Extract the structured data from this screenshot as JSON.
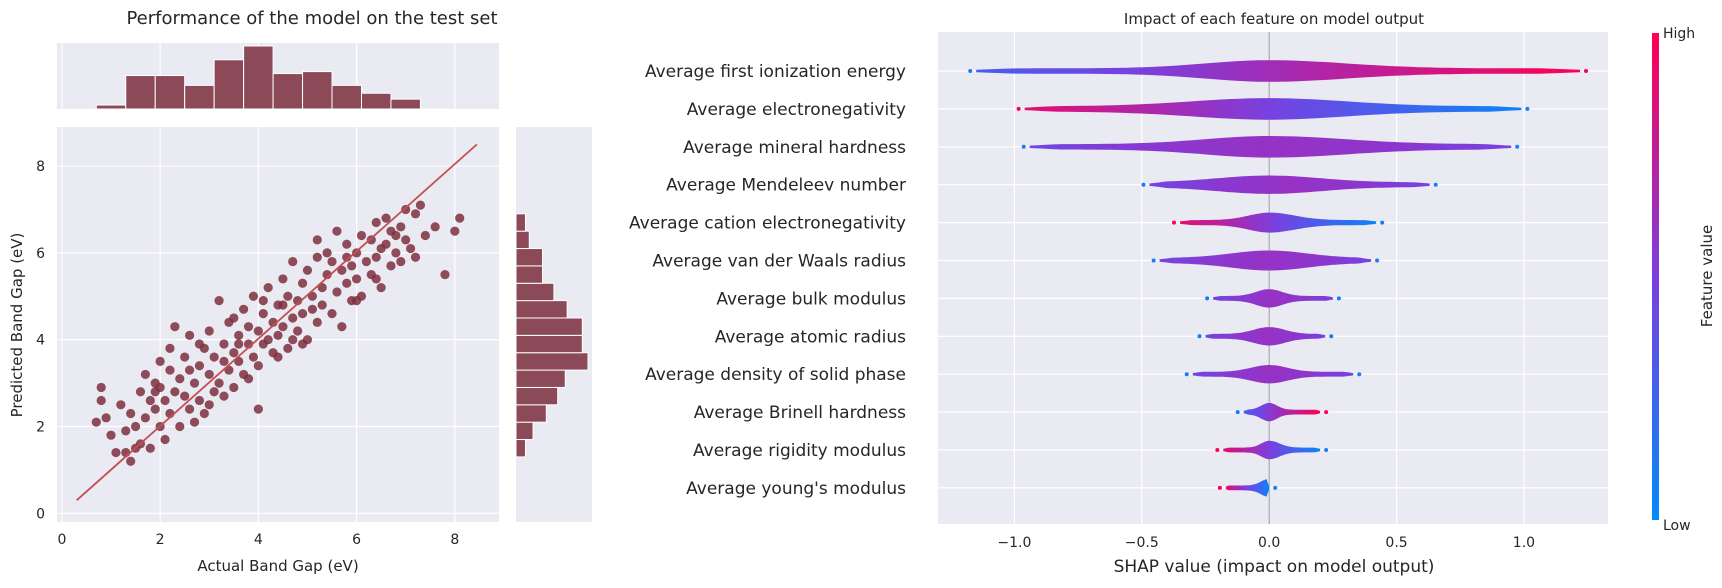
{
  "chart_data": [
    {
      "type": "scatter",
      "title": "Performance of the model on the test set",
      "xlabel": "Actual Band Gap (eV)",
      "ylabel": "Predicted Band Gap (eV)",
      "xlim": [
        -0.1,
        8.9
      ],
      "ylim": [
        -0.2,
        8.9
      ],
      "xticks": [
        0,
        2,
        4,
        6,
        8
      ],
      "yticks": [
        0,
        2,
        4,
        6,
        8
      ],
      "grid": true,
      "colors": {
        "points": "#7e2f3f",
        "line": "#c44e52",
        "hist": "#8c4a58",
        "background": "#eaeaf2"
      },
      "fit_line": {
        "x": [
          0.3,
          8.45
        ],
        "y": [
          0.3,
          8.5
        ]
      },
      "top_histogram": {
        "bin_edges": [
          0.7,
          1.3,
          1.9,
          2.5,
          3.1,
          3.7,
          4.3,
          4.9,
          5.5,
          6.1,
          6.7,
          7.3,
          7.9
        ],
        "counts": [
          2,
          17,
          17,
          12,
          25,
          32,
          18,
          19,
          12,
          8,
          5,
          0
        ]
      },
      "right_histogram": {
        "bin_edges": [
          1.3,
          1.7,
          2.1,
          2.5,
          2.9,
          3.3,
          3.7,
          4.1,
          4.5,
          4.9,
          5.3,
          5.7,
          6.1,
          6.5,
          6.9
        ],
        "counts": [
          5,
          9,
          16,
          22,
          26,
          38,
          35,
          35,
          27,
          20,
          14,
          14,
          7,
          5
        ]
      },
      "points": [
        [
          0.7,
          2.1
        ],
        [
          0.8,
          2.6
        ],
        [
          0.8,
          2.9
        ],
        [
          0.9,
          2.2
        ],
        [
          1.0,
          1.8
        ],
        [
          1.1,
          1.4
        ],
        [
          1.2,
          2.5
        ],
        [
          1.3,
          1.4
        ],
        [
          1.3,
          1.9
        ],
        [
          1.4,
          2.3
        ],
        [
          1.4,
          1.2
        ],
        [
          1.5,
          1.5
        ],
        [
          1.5,
          2.0
        ],
        [
          1.6,
          2.8
        ],
        [
          1.6,
          1.6
        ],
        [
          1.7,
          2.2
        ],
        [
          1.7,
          3.2
        ],
        [
          1.8,
          2.6
        ],
        [
          1.8,
          1.5
        ],
        [
          1.9,
          3.0
        ],
        [
          1.9,
          2.4
        ],
        [
          2.0,
          2.0
        ],
        [
          2.0,
          2.9
        ],
        [
          2.0,
          3.5
        ],
        [
          2.1,
          2.6
        ],
        [
          2.1,
          1.7
        ],
        [
          2.2,
          3.3
        ],
        [
          2.2,
          2.3
        ],
        [
          2.3,
          4.3
        ],
        [
          2.3,
          2.8
        ],
        [
          2.4,
          3.1
        ],
        [
          2.4,
          2.0
        ],
        [
          2.5,
          3.6
        ],
        [
          2.5,
          2.7
        ],
        [
          2.6,
          4.1
        ],
        [
          2.6,
          2.4
        ],
        [
          2.7,
          3.0
        ],
        [
          2.7,
          2.1
        ],
        [
          2.8,
          3.4
        ],
        [
          2.8,
          2.6
        ],
        [
          2.9,
          3.8
        ],
        [
          2.9,
          2.3
        ],
        [
          3.0,
          3.2
        ],
        [
          3.0,
          4.2
        ],
        [
          3.1,
          2.8
        ],
        [
          3.1,
          3.6
        ],
        [
          3.2,
          4.9
        ],
        [
          3.2,
          3.0
        ],
        [
          3.3,
          3.9
        ],
        [
          3.3,
          2.7
        ],
        [
          3.4,
          4.4
        ],
        [
          3.4,
          3.3
        ],
        [
          3.5,
          3.7
        ],
        [
          3.5,
          2.9
        ],
        [
          3.6,
          4.1
        ],
        [
          3.6,
          3.5
        ],
        [
          3.7,
          4.7
        ],
        [
          3.7,
          3.2
        ],
        [
          3.8,
          3.9
        ],
        [
          3.8,
          4.3
        ],
        [
          3.9,
          3.6
        ],
        [
          3.9,
          5.0
        ],
        [
          4.0,
          4.2
        ],
        [
          4.0,
          3.4
        ],
        [
          4.0,
          2.4
        ],
        [
          4.1,
          4.6
        ],
        [
          4.1,
          3.9
        ],
        [
          4.2,
          5.2
        ],
        [
          4.2,
          4.0
        ],
        [
          4.3,
          4.4
        ],
        [
          4.3,
          3.7
        ],
        [
          4.4,
          4.8
        ],
        [
          4.4,
          4.1
        ],
        [
          4.5,
          5.4
        ],
        [
          4.5,
          4.3
        ],
        [
          4.6,
          3.8
        ],
        [
          4.6,
          5.0
        ],
        [
          4.7,
          4.5
        ],
        [
          4.7,
          5.8
        ],
        [
          4.8,
          4.9
        ],
        [
          4.8,
          4.2
        ],
        [
          4.9,
          5.3
        ],
        [
          4.9,
          4.6
        ],
        [
          5.0,
          5.6
        ],
        [
          5.0,
          4.0
        ],
        [
          5.1,
          5.0
        ],
        [
          5.1,
          4.7
        ],
        [
          5.2,
          5.9
        ],
        [
          5.2,
          4.4
        ],
        [
          5.3,
          5.2
        ],
        [
          5.3,
          4.8
        ],
        [
          5.4,
          5.5
        ],
        [
          5.4,
          6.0
        ],
        [
          5.5,
          4.6
        ],
        [
          5.5,
          5.8
        ],
        [
          5.6,
          5.1
        ],
        [
          5.7,
          5.6
        ],
        [
          5.7,
          4.3
        ],
        [
          5.8,
          6.2
        ],
        [
          5.8,
          5.3
        ],
        [
          5.9,
          5.7
        ],
        [
          5.9,
          4.9
        ],
        [
          6.0,
          6.0
        ],
        [
          6.0,
          5.4
        ],
        [
          6.1,
          6.4
        ],
        [
          6.1,
          5.0
        ],
        [
          6.2,
          5.8
        ],
        [
          6.3,
          6.3
        ],
        [
          6.3,
          5.5
        ],
        [
          6.4,
          6.7
        ],
        [
          6.4,
          5.9
        ],
        [
          6.5,
          6.1
        ],
        [
          6.5,
          5.2
        ],
        [
          6.6,
          6.8
        ],
        [
          6.6,
          6.2
        ],
        [
          6.7,
          5.7
        ],
        [
          6.7,
          6.5
        ],
        [
          6.8,
          6.0
        ],
        [
          6.9,
          6.6
        ],
        [
          6.9,
          5.8
        ],
        [
          7.0,
          7.0
        ],
        [
          7.0,
          6.3
        ],
        [
          7.1,
          6.1
        ],
        [
          7.2,
          6.9
        ],
        [
          7.2,
          5.9
        ],
        [
          7.3,
          7.1
        ],
        [
          7.4,
          6.4
        ],
        [
          7.6,
          6.6
        ],
        [
          7.8,
          5.5
        ],
        [
          8.0,
          6.5
        ],
        [
          8.1,
          6.8
        ],
        [
          2.2,
          3.8
        ],
        [
          2.6,
          3.3
        ],
        [
          3.0,
          2.5
        ],
        [
          3.5,
          4.5
        ],
        [
          3.8,
          3.1
        ],
        [
          4.4,
          3.6
        ],
        [
          4.9,
          3.9
        ],
        [
          5.2,
          6.3
        ],
        [
          5.6,
          6.5
        ],
        [
          6.0,
          4.9
        ],
        [
          6.4,
          5.4
        ],
        [
          4.5,
          4.8
        ],
        [
          3.3,
          3.5
        ],
        [
          2.8,
          3.9
        ],
        [
          1.9,
          2.8
        ],
        [
          5.8,
          5.9
        ],
        [
          4.1,
          4.9
        ],
        [
          3.6,
          3.9
        ],
        [
          4.7,
          4.0
        ],
        [
          6.8,
          6.4
        ]
      ]
    },
    {
      "type": "violin",
      "title": "Impact of each feature on model output",
      "xlabel": "SHAP value (impact on model output)",
      "xlim": [
        -1.3,
        1.33
      ],
      "xticks": [
        -1.0,
        -0.5,
        0.0,
        0.5,
        1.0
      ],
      "xtick_labels": [
        "−1.0",
        "−0.5",
        "0.0",
        "0.5",
        "1.0"
      ],
      "grid": true,
      "colorbar": {
        "label": "Feature value",
        "high": "High",
        "low": "Low",
        "colors": [
          "#008bfb",
          "#ff0052"
        ]
      },
      "features": [
        {
          "name": "Average first ionization energy",
          "range": [
            -1.15,
            1.22
          ],
          "width": 0.6,
          "spread_left": 0.25,
          "spread_right": 0.3
        },
        {
          "name": "Average electronegativity",
          "range": [
            -0.96,
            0.99
          ],
          "width": 0.6,
          "spread_left": 0.3,
          "spread_right": 0.3
        },
        {
          "name": "Average mineral hardness",
          "range": [
            -0.94,
            0.95
          ],
          "width": 0.6,
          "spread_left": 0.25,
          "spread_right": 0.3
        },
        {
          "name": "Average Mendeleev number",
          "range": [
            -0.47,
            0.63
          ],
          "width": 0.5,
          "spread_left": 0.2,
          "spread_right": 0.2
        },
        {
          "name": "Average cation electronegativity",
          "range": [
            -0.35,
            0.42
          ],
          "width": 0.55,
          "spread_left": 0.08,
          "spread_right": 0.1
        },
        {
          "name": "Average van der Waals radius",
          "range": [
            -0.43,
            0.4
          ],
          "width": 0.55,
          "spread_left": 0.15,
          "spread_right": 0.15
        },
        {
          "name": "Average bulk modulus",
          "range": [
            -0.22,
            0.25
          ],
          "width": 0.5,
          "spread_left": 0.05,
          "spread_right": 0.05
        },
        {
          "name": "Average atomic radius",
          "range": [
            -0.25,
            0.22
          ],
          "width": 0.5,
          "spread_left": 0.06,
          "spread_right": 0.06
        },
        {
          "name": "Average density of solid phase",
          "range": [
            -0.3,
            0.33
          ],
          "width": 0.5,
          "spread_left": 0.07,
          "spread_right": 0.07
        },
        {
          "name": "Average Brinell hardness",
          "range": [
            -0.1,
            0.2
          ],
          "width": 0.5,
          "spread_left": 0.03,
          "spread_right": 0.03
        },
        {
          "name": "Average rigidity modulus",
          "range": [
            -0.18,
            0.2
          ],
          "width": 0.5,
          "spread_left": 0.03,
          "spread_right": 0.04
        },
        {
          "name": "Average young's modulus",
          "range": [
            -0.17,
            0.0
          ],
          "width": 0.5,
          "spread_left": 0.03,
          "spread_right": 0.02
        }
      ]
    }
  ]
}
